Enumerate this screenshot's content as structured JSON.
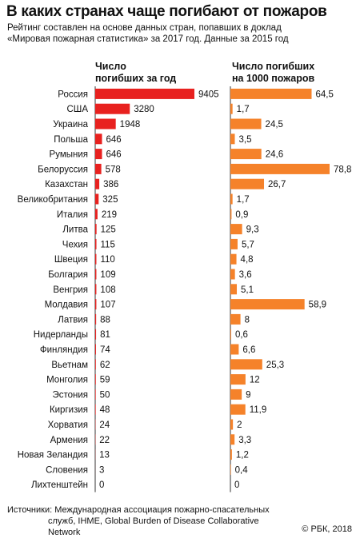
{
  "title": "В каких странах чаще погибают от пожаров",
  "subtitle_line1": "Рейтинг составлен на основе данных стран, попавших в доклад",
  "subtitle_line2": "«Мировая пожарная статистика» за 2017 год. Данные за 2015 год",
  "colors": {
    "deaths": "#e8211f",
    "per1000": "#f5822a",
    "axis": "#333333"
  },
  "chart_data": {
    "type": "bar",
    "categories": [
      "Россия",
      "США",
      "Украина",
      "Польша",
      "Румыния",
      "Белоруссия",
      "Казахстан",
      "Великобритания",
      "Италия",
      "Литва",
      "Чехия",
      "Швеция",
      "Болгария",
      "Венгрия",
      "Молдавия",
      "Латвия",
      "Нидерланды",
      "Финляндия",
      "Вьетнам",
      "Монголия",
      "Эстония",
      "Киргизия",
      "Хорватия",
      "Армения",
      "Новая Зеландия",
      "Словения",
      "Лихтенштейн"
    ],
    "series": [
      {
        "name": "Число погибших за год",
        "header_line1": "Число",
        "header_line2": "погибших за год",
        "values": [
          9405,
          3280,
          1948,
          646,
          646,
          578,
          386,
          325,
          219,
          125,
          115,
          110,
          109,
          108,
          107,
          88,
          81,
          74,
          62,
          59,
          50,
          48,
          24,
          22,
          13,
          3,
          0
        ],
        "labels": [
          "9405",
          "3280",
          "1948",
          "646",
          "646",
          "578",
          "386",
          "325",
          "219",
          "125",
          "115",
          "110",
          "109",
          "108",
          "107",
          "88",
          "81",
          "74",
          "62",
          "59",
          "50",
          "48",
          "24",
          "22",
          "13",
          "3",
          "0"
        ]
      },
      {
        "name": "Число погибших на 1000 пожаров",
        "header_line1": "Число погибших",
        "header_line2": "на 1000 пожаров",
        "values": [
          64.5,
          1.7,
          24.5,
          3.5,
          24.6,
          78.8,
          26.7,
          1.7,
          0.9,
          9.3,
          5.7,
          4.8,
          3.6,
          5.1,
          58.9,
          8,
          0.6,
          6.6,
          25.3,
          12,
          9,
          11.9,
          2,
          3.3,
          1.2,
          0.4,
          0
        ],
        "labels": [
          "64,5",
          "1,7",
          "24,5",
          "3,5",
          "24,6",
          "78,8",
          "26,7",
          "1,7",
          "0,9",
          "9,3",
          "5,7",
          "4,8",
          "3,6",
          "5,1",
          "58,9",
          "8",
          "0,6",
          "6,6",
          "25,3",
          "12",
          "9",
          "11,9",
          "2",
          "3,3",
          "1,2",
          "0,4",
          "0"
        ]
      }
    ]
  },
  "source_line1": "Источники: Международная ассоциация пожарно-спасательных",
  "source_line2": "служб, IHME, Global Burden of Disease Collaborative",
  "source_line3": "Network",
  "credit": "© РБК, 2018"
}
